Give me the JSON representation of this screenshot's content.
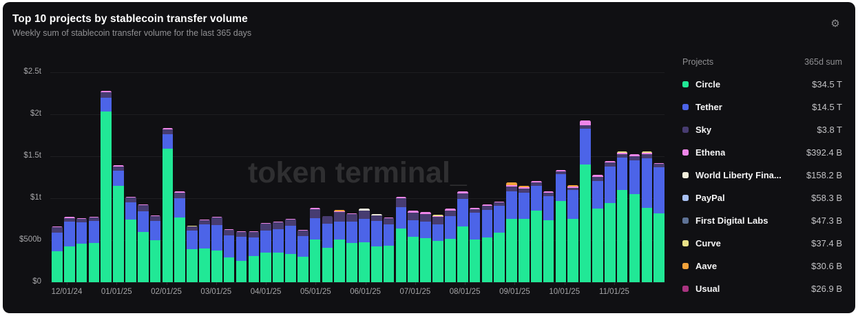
{
  "header": {
    "title": "Top 10 projects by stablecoin transfer volume",
    "subtitle": "Weekly sum of stablecoin transfer volume for the last 365 days"
  },
  "watermark": "token terminal_",
  "settings_icon": "gear",
  "legend": {
    "columns": {
      "project": "Projects",
      "sum": "365d sum"
    },
    "items": [
      {
        "id": "c",
        "name": "Circle",
        "sum": "$34.5 T",
        "color": "#21e896"
      },
      {
        "id": "t",
        "name": "Tether",
        "sum": "$14.5 T",
        "color": "#4c64e8"
      },
      {
        "id": "s",
        "name": "Sky",
        "sum": "$3.8 T",
        "color": "#473c71"
      },
      {
        "id": "e",
        "name": "Ethena",
        "sum": "$392.4 B",
        "color": "#ef86e9"
      },
      {
        "id": "w",
        "name": "World Liberty Fina...",
        "sum": "$158.2 B",
        "color": "#f1eddb"
      },
      {
        "id": "p",
        "name": "PayPal",
        "sum": "$58.3 B",
        "color": "#a9c1f4"
      },
      {
        "id": "f",
        "name": "First Digital Labs",
        "sum": "$47.3 B",
        "color": "#5e7296"
      },
      {
        "id": "cv",
        "name": "Curve",
        "sum": "$37.4 B",
        "color": "#e9e188"
      },
      {
        "id": "a",
        "name": "Aave",
        "sum": "$30.6 B",
        "color": "#f3a33b"
      },
      {
        "id": "u",
        "name": "Usual",
        "sum": "$26.9 B",
        "color": "#a93480"
      }
    ]
  },
  "chart_data": {
    "type": "bar",
    "stacked": true,
    "title": "Top 10 projects by stablecoin transfer volume",
    "unit_note": "weekly stacked values in billions of USD, estimated from pixels",
    "ylim_billions": [
      0,
      2500
    ],
    "yticks": [
      {
        "label": "$2.5t",
        "b": 2500
      },
      {
        "label": "$2t",
        "b": 2000
      },
      {
        "label": "$1.5t",
        "b": 1500
      },
      {
        "label": "$1t",
        "b": 1000
      },
      {
        "label": "$500b",
        "b": 500
      },
      {
        "label": "$0",
        "b": 0
      }
    ],
    "x_tick_labels": [
      "12/01/24",
      "01/01/25",
      "02/01/25",
      "03/01/25",
      "04/01/25",
      "05/01/25",
      "06/01/25",
      "07/01/25",
      "08/01/25",
      "09/01/25",
      "10/01/25",
      "11/01/25"
    ],
    "series_order": [
      "c",
      "t",
      "s",
      "e",
      "w",
      "p",
      "f",
      "cv",
      "a",
      "u"
    ],
    "weeks": [
      {
        "c": 365,
        "t": 225,
        "s": 68,
        "e": 10
      },
      {
        "c": 430,
        "t": 288,
        "s": 45,
        "e": 15
      },
      {
        "c": 455,
        "t": 260,
        "s": 40,
        "e": 8
      },
      {
        "c": 468,
        "t": 262,
        "s": 42,
        "e": 6
      },
      {
        "c": 2030,
        "t": 170,
        "s": 62,
        "e": 18
      },
      {
        "c": 1150,
        "t": 175,
        "s": 55,
        "e": 10
      },
      {
        "c": 748,
        "t": 200,
        "s": 58,
        "e": 8
      },
      {
        "c": 600,
        "t": 245,
        "s": 72,
        "e": 8
      },
      {
        "c": 500,
        "t": 233,
        "s": 52,
        "e": 8
      },
      {
        "c": 1590,
        "t": 173,
        "s": 55,
        "e": 15
      },
      {
        "c": 773,
        "t": 230,
        "s": 65,
        "e": 10
      },
      {
        "c": 392,
        "t": 220,
        "s": 55,
        "cv": 8
      },
      {
        "c": 405,
        "t": 287,
        "s": 48,
        "e": 5
      },
      {
        "c": 380,
        "t": 300,
        "s": 90,
        "e": 8
      },
      {
        "c": 296,
        "t": 260,
        "s": 68,
        "e": 5
      },
      {
        "c": 255,
        "t": 288,
        "s": 58,
        "e": 5
      },
      {
        "c": 315,
        "t": 220,
        "s": 63,
        "e": 10
      },
      {
        "c": 356,
        "t": 260,
        "s": 82,
        "e": 8
      },
      {
        "c": 356,
        "t": 273,
        "s": 85,
        "e": 5
      },
      {
        "c": 334,
        "t": 336,
        "s": 80,
        "e": 5
      },
      {
        "c": 300,
        "t": 246,
        "s": 68,
        "e": 5
      },
      {
        "c": 510,
        "t": 254,
        "s": 108,
        "e": 10
      },
      {
        "c": 410,
        "t": 287,
        "s": 88,
        "e": 5
      },
      {
        "c": 506,
        "t": 219,
        "s": 112,
        "e": 8,
        "a": 15
      },
      {
        "c": 465,
        "t": 260,
        "s": 88,
        "e": 5
      },
      {
        "c": 478,
        "t": 273,
        "s": 105,
        "w": 20
      },
      {
        "c": 429,
        "t": 301,
        "s": 68,
        "w": 10
      },
      {
        "c": 432,
        "t": 257,
        "s": 75,
        "e": 5
      },
      {
        "c": 640,
        "t": 250,
        "s": 113,
        "e": 10
      },
      {
        "c": 545,
        "t": 195,
        "s": 85,
        "e": 25
      },
      {
        "c": 525,
        "t": 200,
        "s": 85,
        "e": 25
      },
      {
        "c": 490,
        "t": 200,
        "s": 85,
        "e": 8,
        "cv": 20
      },
      {
        "c": 516,
        "t": 268,
        "s": 72,
        "e": 22
      },
      {
        "c": 660,
        "t": 333,
        "s": 68,
        "e": 20
      },
      {
        "c": 506,
        "t": 320,
        "s": 44,
        "e": 18
      },
      {
        "c": 533,
        "t": 328,
        "s": 47,
        "e": 18
      },
      {
        "c": 593,
        "t": 314,
        "s": 44,
        "e": 12
      },
      {
        "c": 752,
        "t": 328,
        "s": 62,
        "e": 16,
        "a": 28
      },
      {
        "c": 752,
        "t": 314,
        "s": 48,
        "e": 14,
        "a": 20
      },
      {
        "c": 853,
        "t": 295,
        "s": 41,
        "e": 18
      },
      {
        "c": 738,
        "t": 287,
        "s": 41,
        "e": 18
      },
      {
        "c": 970,
        "t": 314,
        "s": 33,
        "e": 20
      },
      {
        "c": 752,
        "t": 347,
        "s": 27,
        "e": 12,
        "a": 20
      },
      {
        "c": 1400,
        "t": 432,
        "s": 41,
        "e": 55
      },
      {
        "c": 875,
        "t": 328,
        "s": 49,
        "e": 25
      },
      {
        "c": 943,
        "t": 437,
        "s": 47,
        "e": 12
      },
      {
        "c": 1098,
        "t": 383,
        "s": 44,
        "e": 12,
        "cv": 18
      },
      {
        "c": 1052,
        "t": 396,
        "s": 49,
        "e": 25
      },
      {
        "c": 888,
        "t": 590,
        "s": 44,
        "e": 15,
        "cv": 18
      },
      {
        "c": 820,
        "t": 550,
        "s": 38,
        "e": 10
      }
    ]
  }
}
